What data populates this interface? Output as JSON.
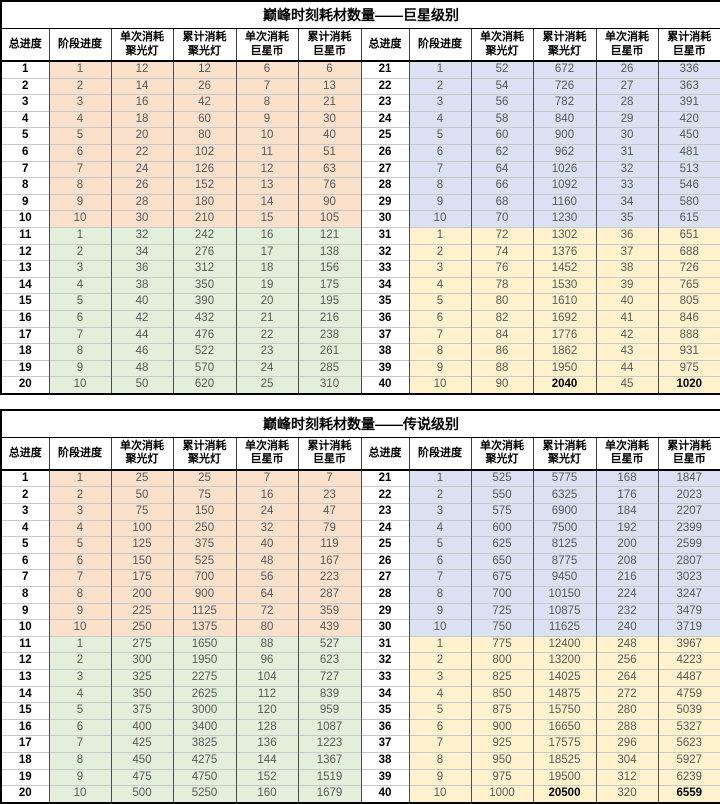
{
  "colors": {
    "salmon_band": "#FBE1CC",
    "green_band": "#E2EFDA",
    "blue_band": "#D9E1F2",
    "yellow_band": "#FFF2CC",
    "grid_vertical": "#4d4d4d",
    "grid_horizontal": "#c9c9c9",
    "value_text": "#595959",
    "outer_border": "#000000"
  },
  "columns": [
    "总进度",
    "阶段进度",
    "单次消耗\n聚光灯",
    "累计消耗\n聚光灯",
    "单次消耗\n巨星币",
    "累计消耗\n巨星币"
  ],
  "tables": [
    {
      "title": "巅峰时刻耗材数量——巨星级别",
      "rows": [
        [
          1,
          1,
          12,
          12,
          6,
          6,
          21,
          1,
          52,
          672,
          26,
          336
        ],
        [
          2,
          2,
          14,
          26,
          7,
          13,
          22,
          2,
          54,
          726,
          27,
          363
        ],
        [
          3,
          3,
          16,
          42,
          8,
          21,
          23,
          3,
          56,
          782,
          28,
          391
        ],
        [
          4,
          4,
          18,
          60,
          9,
          30,
          24,
          4,
          58,
          840,
          29,
          420
        ],
        [
          5,
          5,
          20,
          80,
          10,
          40,
          25,
          5,
          60,
          900,
          30,
          450
        ],
        [
          6,
          6,
          22,
          102,
          11,
          51,
          26,
          6,
          62,
          962,
          31,
          481
        ],
        [
          7,
          7,
          24,
          126,
          12,
          63,
          27,
          7,
          64,
          1026,
          32,
          513
        ],
        [
          8,
          8,
          26,
          152,
          13,
          76,
          28,
          8,
          66,
          1092,
          33,
          546
        ],
        [
          9,
          9,
          28,
          180,
          14,
          90,
          29,
          9,
          68,
          1160,
          34,
          580
        ],
        [
          10,
          10,
          30,
          210,
          15,
          105,
          30,
          10,
          70,
          1230,
          35,
          615
        ],
        [
          11,
          1,
          32,
          242,
          16,
          121,
          31,
          1,
          72,
          1302,
          36,
          651
        ],
        [
          12,
          2,
          34,
          276,
          17,
          138,
          32,
          2,
          74,
          1376,
          37,
          688
        ],
        [
          13,
          3,
          36,
          312,
          18,
          156,
          33,
          3,
          76,
          1452,
          38,
          726
        ],
        [
          14,
          4,
          38,
          350,
          19,
          175,
          34,
          4,
          78,
          1530,
          39,
          765
        ],
        [
          15,
          5,
          40,
          390,
          20,
          195,
          35,
          5,
          80,
          1610,
          40,
          805
        ],
        [
          16,
          6,
          42,
          432,
          21,
          216,
          36,
          6,
          82,
          1692,
          41,
          846
        ],
        [
          17,
          7,
          44,
          476,
          22,
          238,
          37,
          7,
          84,
          1776,
          42,
          888
        ],
        [
          18,
          8,
          46,
          522,
          23,
          261,
          38,
          8,
          86,
          1862,
          43,
          931
        ],
        [
          19,
          9,
          48,
          570,
          24,
          285,
          39,
          9,
          88,
          1950,
          44,
          975
        ],
        [
          20,
          10,
          50,
          620,
          25,
          310,
          40,
          10,
          90,
          2040,
          45,
          1020
        ]
      ],
      "bold_cells": [
        [
          19,
          9
        ],
        [
          19,
          11
        ]
      ]
    },
    {
      "title": "巅峰时刻耗材数量——传说级别",
      "rows": [
        [
          1,
          1,
          25,
          25,
          7,
          7,
          21,
          1,
          525,
          5775,
          168,
          1847
        ],
        [
          2,
          2,
          50,
          75,
          16,
          23,
          22,
          2,
          550,
          6325,
          176,
          2023
        ],
        [
          3,
          3,
          75,
          150,
          24,
          47,
          23,
          3,
          575,
          6900,
          184,
          2207
        ],
        [
          4,
          4,
          100,
          250,
          32,
          79,
          24,
          4,
          600,
          7500,
          192,
          2399
        ],
        [
          5,
          5,
          125,
          375,
          40,
          119,
          25,
          5,
          625,
          8125,
          200,
          2599
        ],
        [
          6,
          6,
          150,
          525,
          48,
          167,
          26,
          6,
          650,
          8775,
          208,
          2807
        ],
        [
          7,
          7,
          175,
          700,
          56,
          223,
          27,
          7,
          675,
          9450,
          216,
          3023
        ],
        [
          8,
          8,
          200,
          900,
          64,
          287,
          28,
          8,
          700,
          10150,
          224,
          3247
        ],
        [
          9,
          9,
          225,
          1125,
          72,
          359,
          29,
          9,
          725,
          10875,
          232,
          3479
        ],
        [
          10,
          10,
          250,
          1375,
          80,
          439,
          30,
          10,
          750,
          11625,
          240,
          3719
        ],
        [
          11,
          1,
          275,
          1650,
          88,
          527,
          31,
          1,
          775,
          12400,
          248,
          3967
        ],
        [
          12,
          2,
          300,
          1950,
          96,
          623,
          32,
          2,
          800,
          13200,
          256,
          4223
        ],
        [
          13,
          3,
          325,
          2275,
          104,
          727,
          33,
          3,
          825,
          14025,
          264,
          4487
        ],
        [
          14,
          4,
          350,
          2625,
          112,
          839,
          34,
          4,
          850,
          14875,
          272,
          4759
        ],
        [
          15,
          5,
          375,
          3000,
          120,
          959,
          35,
          5,
          875,
          15750,
          280,
          5039
        ],
        [
          16,
          6,
          400,
          3400,
          128,
          1087,
          36,
          6,
          900,
          16650,
          288,
          5327
        ],
        [
          17,
          7,
          425,
          3825,
          136,
          1223,
          37,
          7,
          925,
          17575,
          296,
          5623
        ],
        [
          18,
          8,
          450,
          4275,
          144,
          1367,
          38,
          8,
          950,
          18525,
          304,
          5927
        ],
        [
          19,
          9,
          475,
          4750,
          152,
          1519,
          39,
          9,
          975,
          19500,
          312,
          6239
        ],
        [
          20,
          10,
          500,
          5250,
          160,
          1679,
          40,
          10,
          1000,
          20500,
          320,
          6559
        ]
      ],
      "bold_cells": [
        [
          19,
          9
        ],
        [
          19,
          11
        ]
      ]
    }
  ]
}
